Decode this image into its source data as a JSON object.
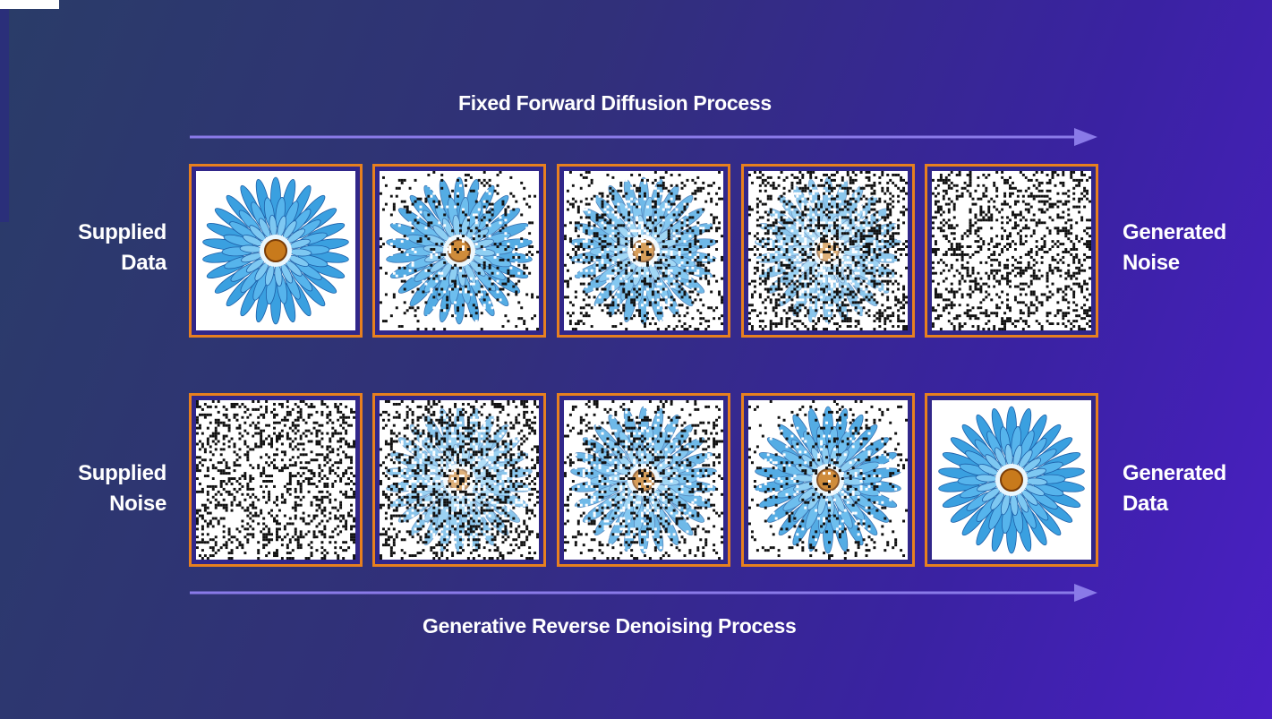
{
  "forward": {
    "caption": "Fixed Forward Diffusion Process",
    "left_label": [
      "Supplied",
      "Data"
    ],
    "right_label": [
      "Generated",
      "Noise"
    ],
    "noise_levels": [
      0,
      0.25,
      0.5,
      0.75,
      1
    ]
  },
  "reverse": {
    "caption": "Generative Reverse Denoising Process",
    "left_label": [
      "Supplied",
      "Noise"
    ],
    "right_label": [
      "Generated",
      "Data"
    ],
    "noise_levels": [
      1,
      0.75,
      0.5,
      0.25,
      0
    ]
  },
  "colors": {
    "frame_border": "#e7801f",
    "frame_inner": "#31278a",
    "arrow": "#8a7ae8",
    "petal": "#3aa0e0",
    "petal_edge": "#1c5fa8",
    "flower_center": "#c87a1c"
  },
  "icons": {
    "arrow": "right-arrow-icon",
    "image": "flower-image"
  }
}
